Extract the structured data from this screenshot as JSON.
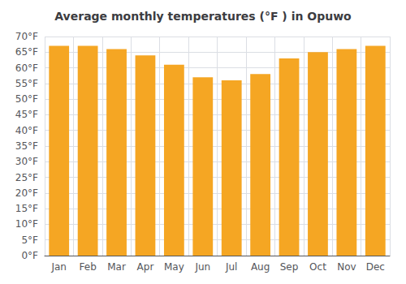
{
  "chart_data": {
    "type": "bar",
    "title": "Average monthly temperatures (°F ) in Opuwo",
    "categories": [
      "Jan",
      "Feb",
      "Mar",
      "Apr",
      "May",
      "Jun",
      "Jul",
      "Aug",
      "Sep",
      "Oct",
      "Nov",
      "Dec"
    ],
    "values": [
      67,
      67,
      66,
      64,
      61,
      57,
      56,
      58,
      63,
      65,
      66,
      67
    ],
    "color": "#F5A623",
    "ylim": [
      0,
      70
    ],
    "yticks": [
      {
        "value": 0,
        "label": "0°F"
      },
      {
        "value": 5,
        "label": "5°F"
      },
      {
        "value": 10,
        "label": "10°F"
      },
      {
        "value": 15,
        "label": "15°F"
      },
      {
        "value": 20,
        "label": "20°F"
      },
      {
        "value": 25,
        "label": "25°F"
      },
      {
        "value": 30,
        "label": "30°F"
      },
      {
        "value": 35,
        "label": "35°F"
      },
      {
        "value": 40,
        "label": "40°F"
      },
      {
        "value": 45,
        "label": "45°F"
      },
      {
        "value": 50,
        "label": "50°F"
      },
      {
        "value": 55,
        "label": "55°F"
      },
      {
        "value": 60,
        "label": "60°F"
      },
      {
        "value": 65,
        "label": "65°F"
      },
      {
        "value": 70,
        "label": "70°F"
      }
    ],
    "grid": true
  }
}
